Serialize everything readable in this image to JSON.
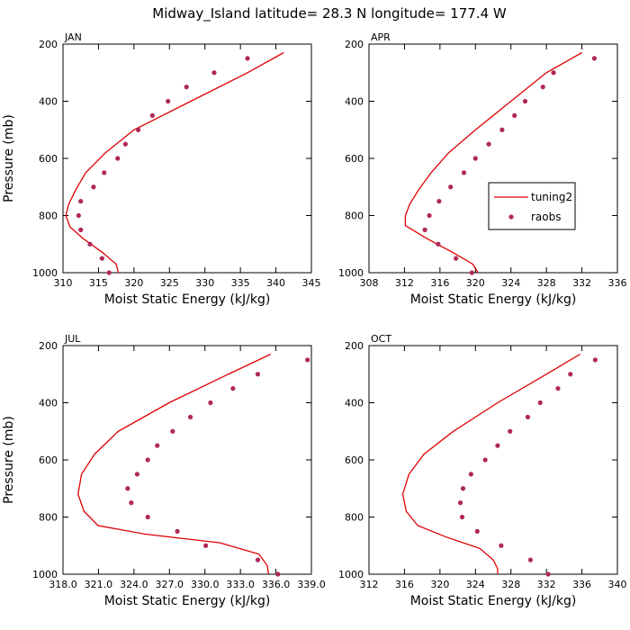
{
  "title": "Midway_Island   latitude= 28.3 N longitude= 177.4 W",
  "colors": {
    "line": "#dd0000",
    "dot": "#b02858",
    "axis": "#000000"
  },
  "legend": {
    "line_label": "tuning2",
    "dot_label": "raobs"
  },
  "chart_data": [
    {
      "type": "line",
      "title": "JAN",
      "xlabel": "Moist Static Energy (kJ/kg)",
      "ylabel": "Pressure (mb)",
      "xlim": [
        310,
        345
      ],
      "ylim": [
        1000,
        200
      ],
      "xticks": [
        310,
        315,
        320,
        325,
        330,
        335,
        340,
        345
      ],
      "xtick_labels": [
        "310",
        "315",
        "320",
        "325",
        "330",
        "335",
        "340",
        "345"
      ],
      "yticks": [
        200,
        400,
        600,
        800,
        1000
      ],
      "ytick_labels": [
        "200",
        "400",
        "600",
        "800",
        "1000"
      ],
      "series": [
        {
          "name": "tuning2",
          "style": "line",
          "x": [
            341.1,
            336,
            328,
            320,
            316,
            313.2,
            311.8,
            310.8,
            310.4,
            311,
            312.8,
            315.6,
            317.5,
            317.8
          ],
          "y": [
            230,
            300,
            400,
            500,
            580,
            650,
            710,
            760,
            800,
            840,
            880,
            930,
            970,
            1000
          ]
        },
        {
          "name": "raobs",
          "style": "dots",
          "x": [
            336,
            331.3,
            327.4,
            324.8,
            322.6,
            320.6,
            318.8,
            317.7,
            315.8,
            314.3,
            312.5,
            312.2,
            312.5,
            313.8,
            315.5,
            316.5
          ],
          "y": [
            250,
            300,
            350,
            400,
            450,
            500,
            550,
            600,
            650,
            700,
            750,
            800,
            850,
            900,
            950,
            1000
          ]
        }
      ]
    },
    {
      "type": "line",
      "title": "APR",
      "xlabel": "Moist Static Energy (kJ/kg)",
      "ylabel": "",
      "xlim": [
        308,
        336
      ],
      "ylim": [
        1000,
        200
      ],
      "xticks": [
        308,
        312,
        316,
        320,
        324,
        328,
        332,
        336
      ],
      "xtick_labels": [
        "308",
        "312",
        "316",
        "320",
        "324",
        "328",
        "332",
        "336"
      ],
      "yticks": [
        200,
        400,
        600,
        800,
        1000
      ],
      "ytick_labels": [
        "200",
        "400",
        "600",
        "800",
        "1000"
      ],
      "legend_position": "right-middle",
      "series": [
        {
          "name": "tuning2",
          "style": "line",
          "x": [
            332,
            328,
            324,
            320,
            317,
            315,
            313.6,
            312.6,
            312.1,
            312.1,
            314.5,
            317.5,
            319.7,
            320.3
          ],
          "y": [
            230,
            300,
            400,
            500,
            580,
            650,
            710,
            760,
            800,
            835,
            880,
            930,
            970,
            1000
          ]
        },
        {
          "name": "raobs",
          "style": "dots",
          "x": [
            333.4,
            328.8,
            327.6,
            325.6,
            324.4,
            323,
            321.5,
            320,
            318.7,
            317.2,
            315.9,
            314.8,
            314.3,
            315.8,
            317.8,
            319.6
          ],
          "y": [
            250,
            300,
            350,
            400,
            450,
            500,
            550,
            600,
            650,
            700,
            750,
            800,
            850,
            900,
            950,
            1000
          ]
        }
      ]
    },
    {
      "type": "line",
      "title": "JUL",
      "xlabel": "Moist Static Energy (kJ/kg)",
      "ylabel": "Pressure (mb)",
      "xlim": [
        318.03,
        339.03
      ],
      "ylim": [
        1000,
        200
      ],
      "xticks": [
        318.03,
        321.03,
        324.03,
        327.03,
        330.03,
        333.03,
        336.03,
        339.03
      ],
      "xtick_labels": [
        "318.0",
        "321.0",
        "324.0",
        "327.0",
        "330.0",
        "333.0",
        "336.0",
        "339.0"
      ],
      "yticks": [
        200,
        400,
        600,
        800,
        1000
      ],
      "ytick_labels": [
        "200",
        "400",
        "600",
        "800",
        "1000"
      ],
      "series": [
        {
          "name": "tuning2",
          "style": "line",
          "x": [
            335.6,
            332,
            327,
            322.7,
            320.7,
            319.6,
            319.3,
            319.8,
            321,
            325,
            331.3,
            334.6,
            335.3,
            335.4
          ],
          "y": [
            230,
            300,
            400,
            500,
            580,
            650,
            720,
            780,
            830,
            860,
            890,
            930,
            970,
            1000
          ]
        },
        {
          "name": "raobs",
          "style": "dots",
          "x": [
            338.7,
            334.5,
            332.4,
            330.5,
            328.8,
            327.3,
            326,
            325.2,
            324.3,
            323.5,
            323.8,
            325.2,
            327.7,
            330.1,
            334.5,
            336.2
          ],
          "y": [
            250,
            300,
            350,
            400,
            450,
            500,
            550,
            600,
            650,
            700,
            750,
            800,
            850,
            900,
            950,
            1000
          ]
        }
      ]
    },
    {
      "type": "line",
      "title": "OCT",
      "xlabel": "Moist Static Energy (kJ/kg)",
      "ylabel": "",
      "xlim": [
        312,
        340
      ],
      "ylim": [
        1000,
        200
      ],
      "xticks": [
        312,
        316,
        320,
        324,
        328,
        332,
        336,
        340
      ],
      "xtick_labels": [
        "312",
        "316",
        "320",
        "324",
        "328",
        "332",
        "336",
        "340"
      ],
      "yticks": [
        200,
        400,
        600,
        800,
        1000
      ],
      "ytick_labels": [
        "200",
        "400",
        "600",
        "800",
        "1000"
      ],
      "series": [
        {
          "name": "tuning2",
          "style": "line",
          "x": [
            335.8,
            332,
            326.5,
            321.5,
            318.2,
            316.5,
            315.8,
            316.2,
            317.5,
            320.7,
            324.5,
            326,
            326.5,
            326.5
          ],
          "y": [
            230,
            300,
            400,
            500,
            580,
            650,
            720,
            780,
            830,
            870,
            910,
            950,
            980,
            1000
          ]
        },
        {
          "name": "raobs",
          "style": "dots",
          "x": [
            337.5,
            334.7,
            333.3,
            331.3,
            329.9,
            327.9,
            326.5,
            325.1,
            323.5,
            322.6,
            322.3,
            322.5,
            324.2,
            326.9,
            330.2,
            332.2
          ],
          "y": [
            250,
            300,
            350,
            400,
            450,
            500,
            550,
            600,
            650,
            700,
            750,
            800,
            850,
            900,
            950,
            1000
          ]
        }
      ]
    }
  ]
}
